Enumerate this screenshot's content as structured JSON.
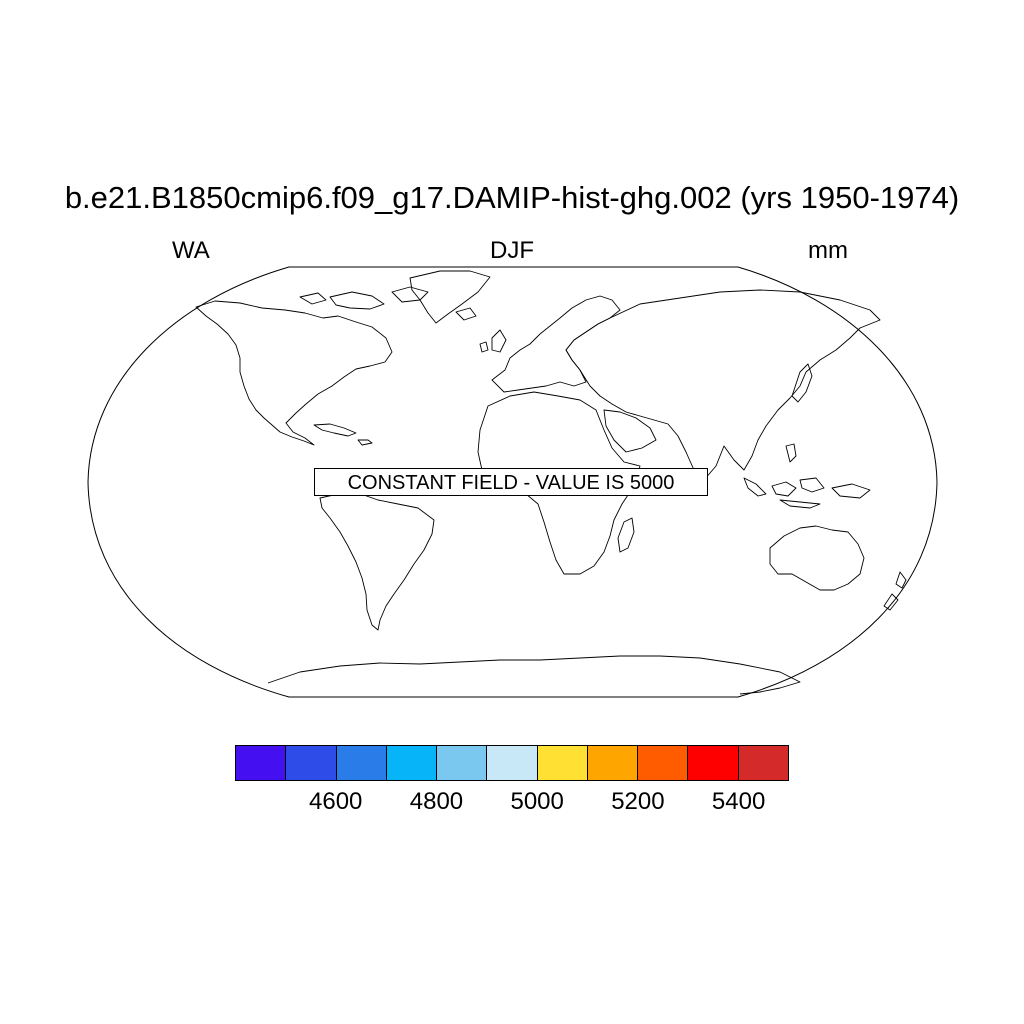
{
  "header": {
    "title": "b.e21.B1850cmip6.f09_g17.DAMIP-hist-ghg.002 (yrs 1950-1974)",
    "left_label": "WA",
    "center_label": "DJF",
    "right_label": "mm"
  },
  "map": {
    "projection": "Robinson",
    "annotation": "CONSTANT FIELD - VALUE IS 5000",
    "constant_value": 5000,
    "coastline_color": "#000000",
    "background_color": "#ffffff"
  },
  "colorbar": {
    "colors": [
      "#4410f2",
      "#2e4de8",
      "#2a7de8",
      "#07b4f7",
      "#7ac8f0",
      "#c8e8f8",
      "#ffe033",
      "#ffa500",
      "#ff5c00",
      "#ff0000",
      "#d42a2a"
    ],
    "levels": [
      4500,
      4600,
      4700,
      4800,
      4900,
      5000,
      5100,
      5200,
      5300,
      5400
    ],
    "labels": [
      "4600",
      "4800",
      "5000",
      "5200",
      "5400"
    ],
    "label_values": [
      4600,
      4800,
      5000,
      5200,
      5400
    ]
  }
}
